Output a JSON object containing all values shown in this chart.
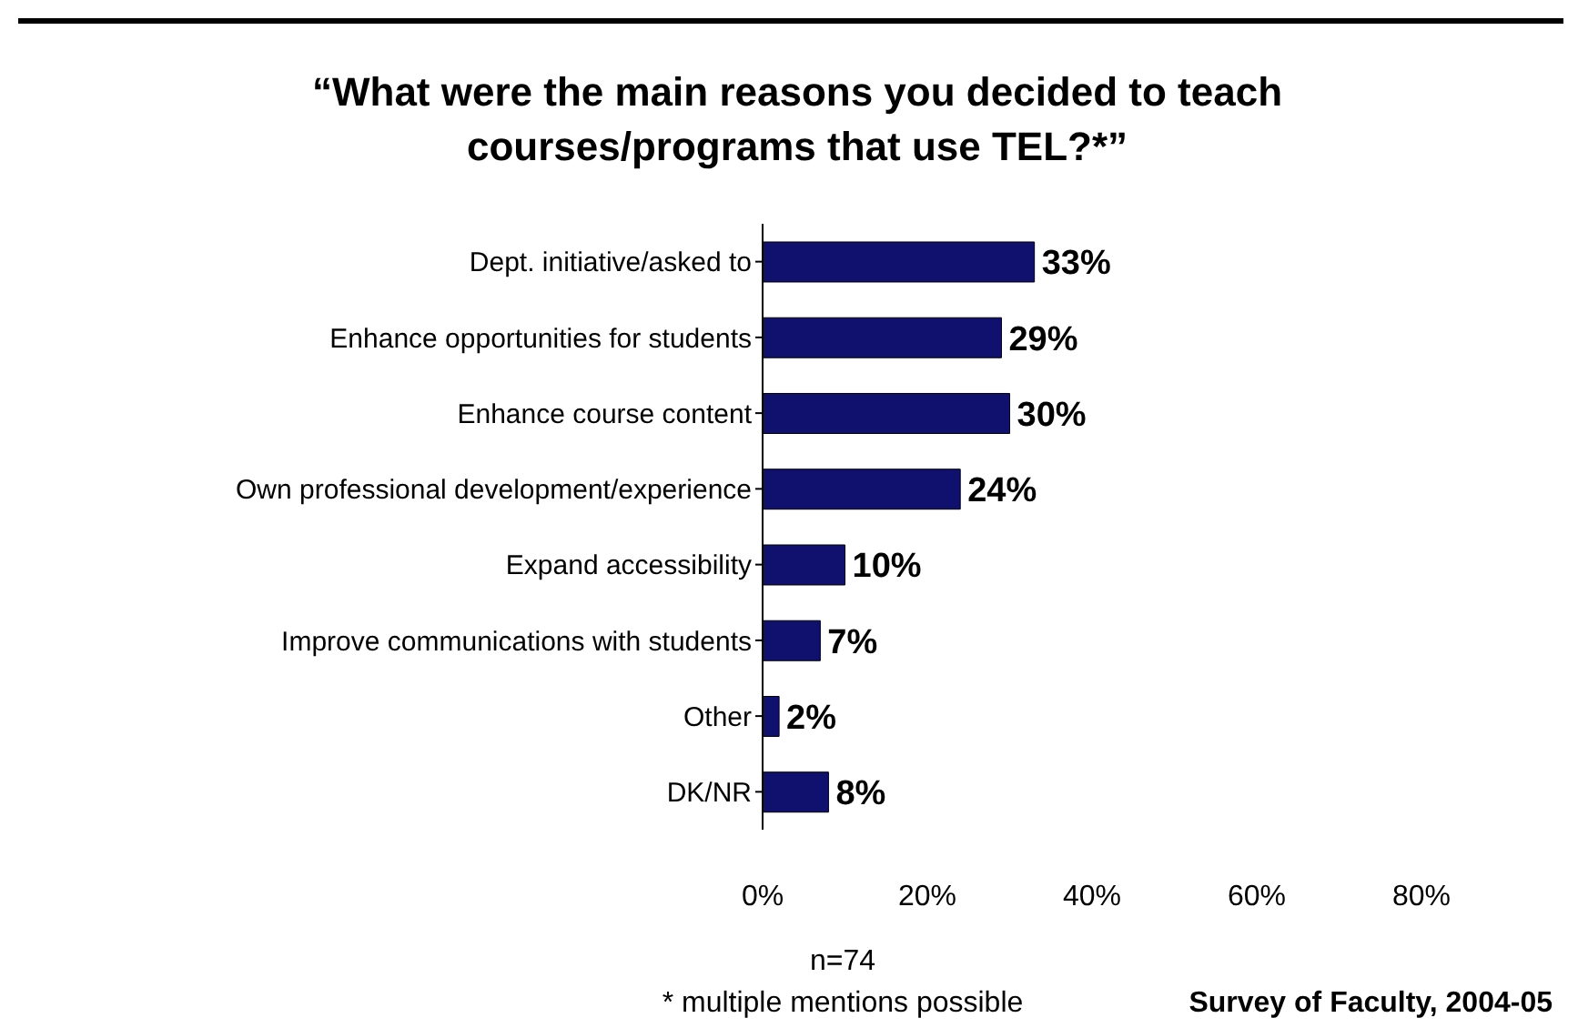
{
  "chart_data": {
    "type": "bar",
    "orientation": "horizontal",
    "title": "“What were the main reasons you decided to teach courses/programs that use TEL?*”",
    "categories": [
      "Dept. initiative/asked to",
      "Enhance opportunities for students",
      "Enhance course content",
      "Own professional development/experience",
      "Expand accessibility",
      "Improve communications with students",
      "Other",
      "DK/NR"
    ],
    "values": [
      33,
      29,
      30,
      24,
      10,
      7,
      2,
      8
    ],
    "value_labels": [
      "33%",
      "29%",
      "30%",
      "24%",
      "10%",
      "7%",
      "2%",
      "8%"
    ],
    "color": "#10106e",
    "xlim": [
      0,
      80
    ],
    "xticks": [
      {
        "value": 0,
        "label": "0%"
      },
      {
        "value": 20,
        "label": "20%"
      },
      {
        "value": 40,
        "label": "40%"
      },
      {
        "value": 60,
        "label": "60%"
      },
      {
        "value": 80,
        "label": "80%"
      }
    ],
    "grid": false,
    "legend": false,
    "annotations": [
      "n=74",
      "* multiple mentions possible",
      "Survey of Faculty, 2004-05"
    ]
  }
}
